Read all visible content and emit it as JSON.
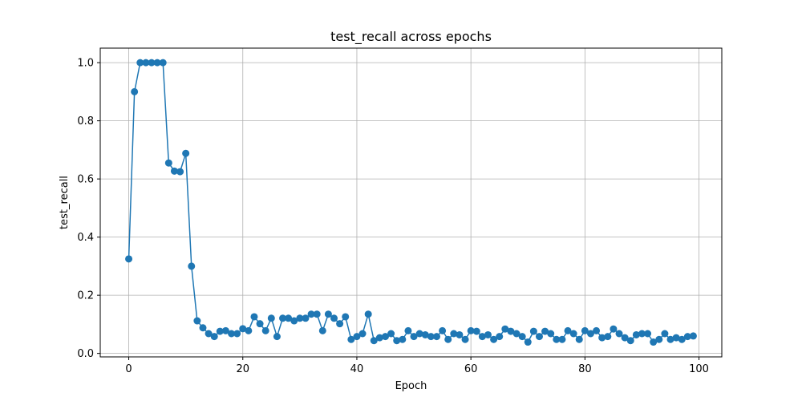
{
  "chart_data": {
    "type": "line",
    "title": "test_recall across epochs",
    "xlabel": "Epoch",
    "ylabel": "test_recall",
    "xlim": [
      -5,
      104
    ],
    "ylim": [
      -0.012,
      1.05
    ],
    "xticks": [
      0,
      20,
      40,
      60,
      80,
      100
    ],
    "yticks": [
      0.0,
      0.2,
      0.4,
      0.6,
      0.8,
      1.0
    ],
    "xtick_labels": [
      "0",
      "20",
      "40",
      "60",
      "80",
      "100"
    ],
    "ytick_labels": [
      "0.0",
      "0.2",
      "0.4",
      "0.6",
      "0.8",
      "1.0"
    ],
    "grid": true,
    "color": "#1f77b4",
    "series": [
      {
        "marker": "circle",
        "x": [
          0,
          1,
          2,
          3,
          4,
          5,
          6,
          7,
          8,
          9,
          10,
          11,
          12,
          13,
          14,
          15,
          16,
          17,
          18,
          19,
          20,
          21,
          22,
          23,
          24,
          25,
          26,
          27,
          28,
          29,
          30,
          31,
          32,
          33,
          34,
          35,
          36,
          37,
          38,
          39,
          40,
          41,
          42,
          43,
          44,
          45,
          46,
          47,
          48,
          49,
          50,
          51,
          52,
          53,
          54,
          55,
          56,
          57,
          58,
          59,
          60,
          61,
          62,
          63,
          64,
          65,
          66,
          67,
          68,
          69,
          70,
          71,
          72,
          73,
          74,
          75,
          76,
          77,
          78,
          79,
          80,
          81,
          82,
          83,
          84,
          85,
          86,
          87,
          88,
          89,
          90,
          91,
          92,
          93,
          94,
          95,
          96,
          97,
          98,
          99
        ],
        "y": [
          0.325,
          0.9,
          1.0,
          1.0,
          1.0,
          1.0,
          1.0,
          0.655,
          0.627,
          0.625,
          0.688,
          0.3,
          0.112,
          0.088,
          0.068,
          0.058,
          0.076,
          0.078,
          0.068,
          0.068,
          0.085,
          0.078,
          0.126,
          0.102,
          0.078,
          0.121,
          0.058,
          0.121,
          0.121,
          0.112,
          0.121,
          0.121,
          0.135,
          0.135,
          0.078,
          0.135,
          0.121,
          0.102,
          0.126,
          0.048,
          0.058,
          0.068,
          0.135,
          0.044,
          0.054,
          0.058,
          0.068,
          0.044,
          0.048,
          0.078,
          0.058,
          0.068,
          0.064,
          0.058,
          0.058,
          0.078,
          0.048,
          0.068,
          0.064,
          0.048,
          0.078,
          0.076,
          0.058,
          0.064,
          0.048,
          0.058,
          0.084,
          0.076,
          0.068,
          0.058,
          0.039,
          0.076,
          0.058,
          0.076,
          0.068,
          0.048,
          0.048,
          0.078,
          0.068,
          0.048,
          0.078,
          0.068,
          0.078,
          0.054,
          0.058,
          0.084,
          0.068,
          0.054,
          0.044,
          0.064,
          0.068,
          0.068,
          0.039,
          0.048,
          0.068,
          0.048,
          0.054,
          0.048,
          0.058,
          0.06
        ]
      }
    ]
  }
}
